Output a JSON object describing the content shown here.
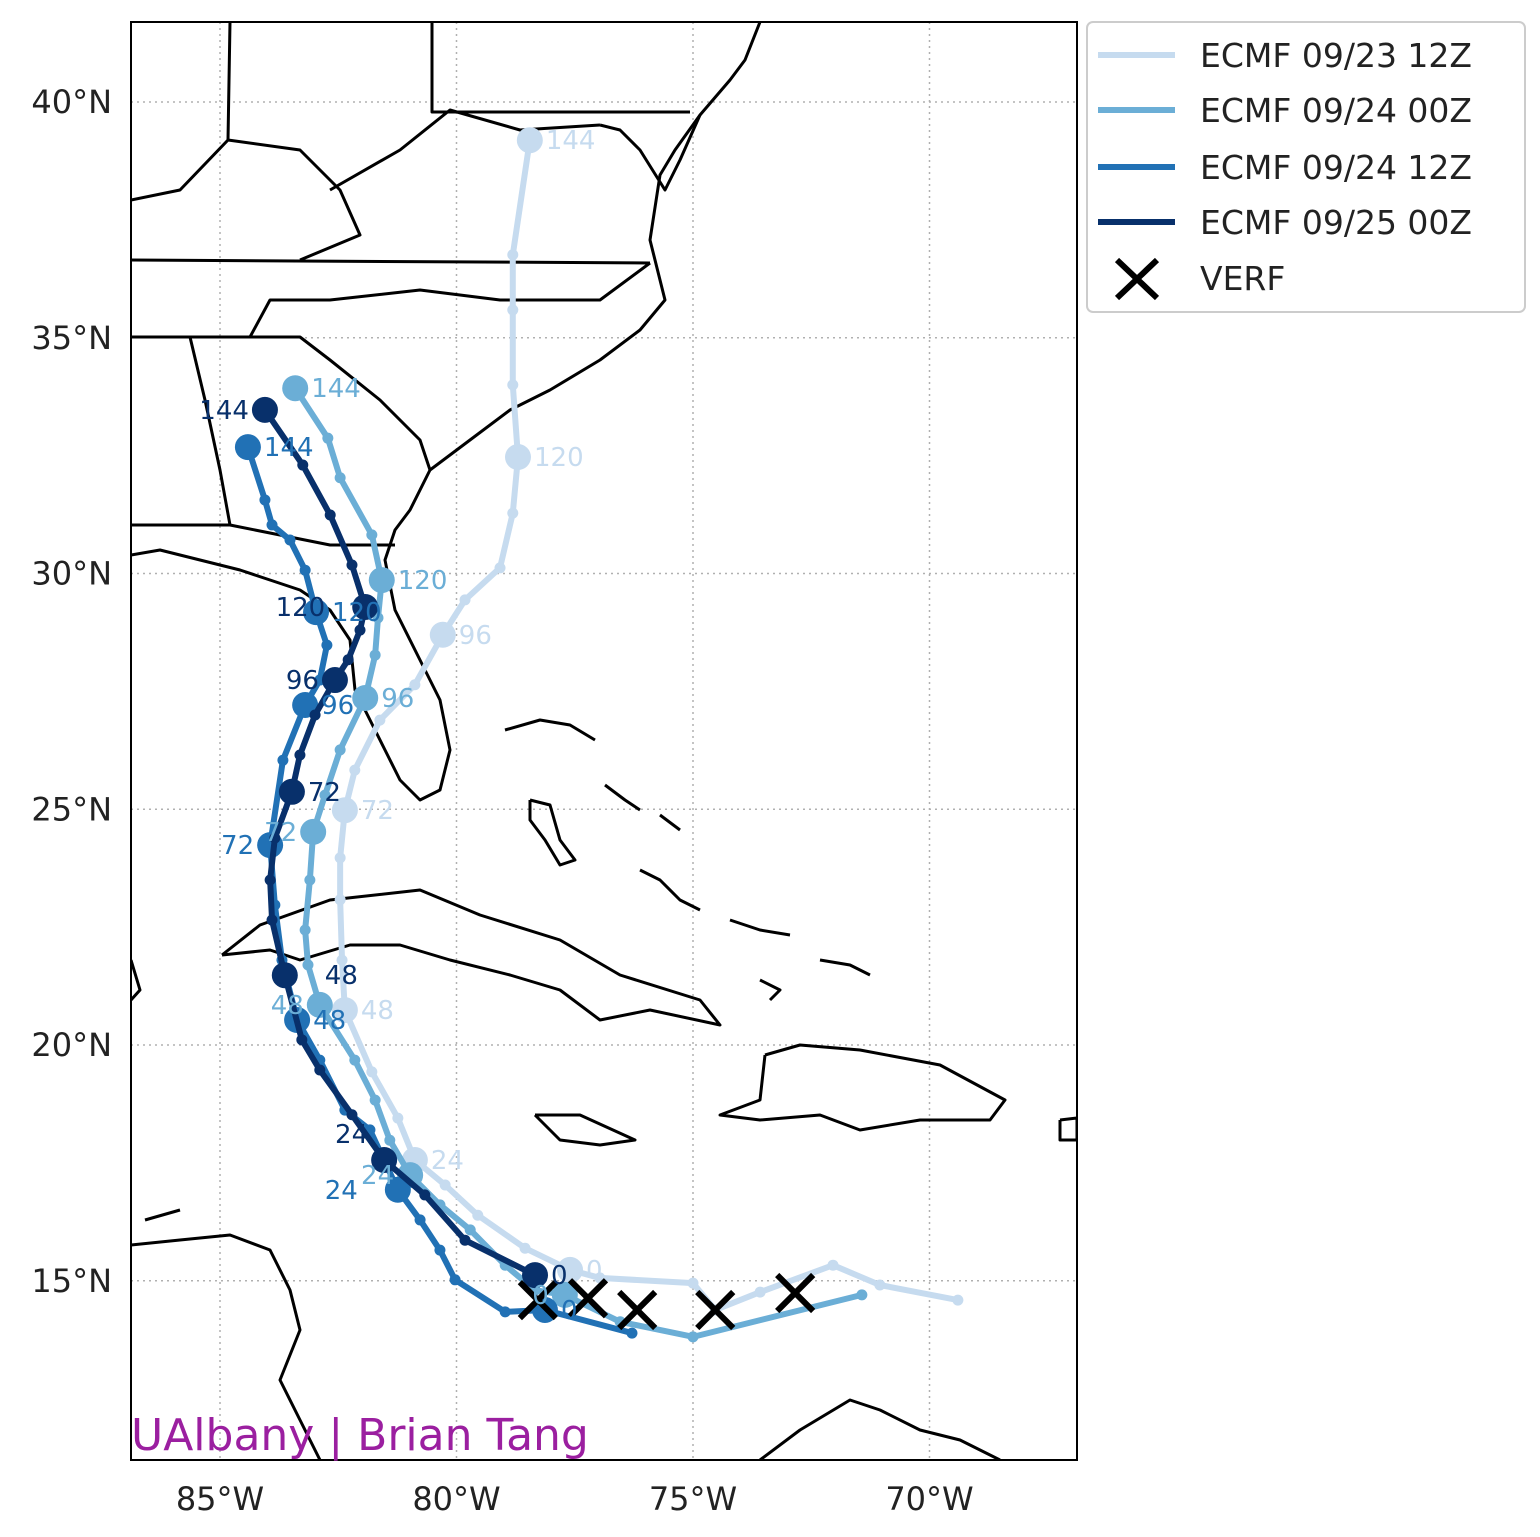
{
  "chart_data": {
    "type": "map-tracks",
    "xlim": [
      -86.88,
      -66.9
    ],
    "ylim": [
      11.2,
      41.7
    ],
    "grid": true,
    "legend_placement": "outside-top-right",
    "x_ticks": [
      {
        "value": -85,
        "label": "85°W"
      },
      {
        "value": -80,
        "label": "80°W"
      },
      {
        "value": -75,
        "label": "75°W"
      },
      {
        "value": -70,
        "label": "70°W"
      }
    ],
    "y_ticks": [
      {
        "value": 40,
        "label": "40°N"
      },
      {
        "value": 35,
        "label": "35°N"
      },
      {
        "value": 30,
        "label": "30°N"
      },
      {
        "value": 25,
        "label": "25°N"
      },
      {
        "value": 20,
        "label": "20°N"
      },
      {
        "value": 15,
        "label": "15°N"
      }
    ],
    "series": [
      {
        "name": "ECMF 09/23 12Z",
        "color": "#c6dbef",
        "points": [
          [
            -69.4,
            14.59,
            null
          ],
          [
            -71.05,
            14.91,
            null
          ],
          [
            -72.04,
            15.33,
            null
          ],
          [
            -73.58,
            14.76,
            null
          ],
          [
            -74.53,
            14.38,
            null
          ],
          [
            -75.0,
            14.95,
            null
          ],
          [
            -76.97,
            15.06,
            null
          ],
          [
            -77.6,
            15.23,
            "0"
          ],
          [
            -78.55,
            15.69,
            null
          ],
          [
            -79.55,
            16.39,
            null
          ],
          [
            -80.24,
            17.03,
            null
          ],
          [
            -80.88,
            17.56,
            "24"
          ],
          [
            -81.24,
            18.45,
            null
          ],
          [
            -81.79,
            19.43,
            null
          ],
          [
            -82.36,
            20.74,
            "48"
          ],
          [
            -82.42,
            21.8,
            null
          ],
          [
            -82.46,
            23.08,
            null
          ],
          [
            -82.46,
            23.97,
            null
          ],
          [
            -82.36,
            24.98,
            "72"
          ],
          [
            -82.15,
            25.83,
            null
          ],
          [
            -81.62,
            26.89,
            null
          ],
          [
            -80.88,
            27.64,
            null
          ],
          [
            -80.29,
            28.7,
            "96"
          ],
          [
            -79.82,
            29.44,
            null
          ],
          [
            -79.08,
            30.12,
            null
          ],
          [
            -78.81,
            31.28,
            null
          ],
          [
            -78.7,
            32.47,
            "120"
          ],
          [
            -78.81,
            34.0,
            null
          ],
          [
            -78.81,
            35.59,
            null
          ],
          [
            -78.81,
            36.76,
            null
          ],
          [
            -78.45,
            39.19,
            "144"
          ]
        ]
      },
      {
        "name": "ECMF 09/24 00Z",
        "color": "#6baed6",
        "points": [
          [
            -71.43,
            14.7,
            null
          ],
          [
            -75.0,
            13.81,
            null
          ],
          [
            -76.54,
            14.13,
            null
          ],
          [
            -77.71,
            14.7,
            "0"
          ],
          [
            -78.34,
            14.8,
            null
          ],
          [
            -78.97,
            15.33,
            null
          ],
          [
            -79.71,
            16.08,
            null
          ],
          [
            -80.35,
            16.61,
            null
          ],
          [
            -80.98,
            17.24,
            "24"
          ],
          [
            -81.41,
            17.98,
            null
          ],
          [
            -81.72,
            18.83,
            null
          ],
          [
            -82.15,
            19.68,
            null
          ],
          [
            -82.89,
            20.85,
            "48"
          ],
          [
            -83.14,
            21.7,
            null
          ],
          [
            -83.2,
            22.44,
            null
          ],
          [
            -83.1,
            23.5,
            null
          ],
          [
            -83.03,
            24.52,
            "72"
          ],
          [
            -82.78,
            25.3,
            null
          ],
          [
            -82.46,
            26.26,
            null
          ],
          [
            -81.93,
            27.36,
            "96"
          ],
          [
            -81.72,
            28.27,
            null
          ],
          [
            -81.66,
            29.06,
            null
          ],
          [
            -81.58,
            29.86,
            "120"
          ],
          [
            -81.79,
            30.82,
            null
          ],
          [
            -82.46,
            32.03,
            null
          ],
          [
            -82.72,
            32.87,
            null
          ],
          [
            -83.41,
            33.93,
            "144"
          ]
        ]
      },
      {
        "name": "ECMF 09/24 12Z",
        "color": "#2171b5",
        "points": [
          [
            -76.29,
            13.89,
            null
          ],
          [
            -78.13,
            14.38,
            "0"
          ],
          [
            -78.97,
            14.34,
            null
          ],
          [
            -80.03,
            15.02,
            null
          ],
          [
            -80.35,
            15.65,
            null
          ],
          [
            -80.77,
            16.29,
            null
          ],
          [
            -81.24,
            16.93,
            "24"
          ],
          [
            -81.83,
            18.2,
            null
          ],
          [
            -82.36,
            18.62,
            null
          ],
          [
            -82.89,
            19.68,
            null
          ],
          [
            -83.37,
            20.53,
            "48"
          ],
          [
            -83.69,
            21.8,
            null
          ],
          [
            -83.84,
            22.97,
            null
          ],
          [
            -83.94,
            24.24,
            "72"
          ],
          [
            -83.67,
            26.04,
            null
          ],
          [
            -83.2,
            27.21,
            "96"
          ],
          [
            -82.89,
            27.74,
            null
          ],
          [
            -82.74,
            28.48,
            null
          ],
          [
            -82.97,
            29.18,
            "120"
          ],
          [
            -83.2,
            30.07,
            null
          ],
          [
            -83.52,
            30.71,
            null
          ],
          [
            -83.9,
            31.03,
            null
          ],
          [
            -84.05,
            31.56,
            null
          ],
          [
            -84.41,
            32.68,
            "144"
          ]
        ]
      },
      {
        "name": "ECMF 09/25 00Z",
        "color": "#08306b",
        "points": [
          [
            -78.34,
            15.12,
            "0"
          ],
          [
            -79.82,
            15.86,
            null
          ],
          [
            -80.67,
            16.82,
            null
          ],
          [
            -81.53,
            17.56,
            "24"
          ],
          [
            -82.21,
            18.52,
            null
          ],
          [
            -82.89,
            19.47,
            null
          ],
          [
            -83.27,
            20.11,
            null
          ],
          [
            -83.63,
            21.48,
            "48"
          ],
          [
            -83.9,
            22.65,
            null
          ],
          [
            -83.94,
            23.5,
            null
          ],
          [
            -83.84,
            24.39,
            null
          ],
          [
            -83.48,
            25.37,
            "72"
          ],
          [
            -83.31,
            26.15,
            null
          ],
          [
            -82.99,
            27.0,
            null
          ],
          [
            -82.57,
            27.74,
            "96"
          ],
          [
            -82.29,
            28.17,
            null
          ],
          [
            -82.04,
            28.8,
            null
          ],
          [
            -81.93,
            29.29,
            "120"
          ],
          [
            -82.21,
            30.18,
            null
          ],
          [
            -82.67,
            31.24,
            null
          ],
          [
            -83.25,
            32.3,
            null
          ],
          [
            -84.05,
            33.47,
            "144"
          ]
        ]
      }
    ],
    "verification": {
      "name": "VERF",
      "color": "#000000",
      "points": [
        [
          -78.28,
          14.59
        ],
        [
          -77.22,
          14.63
        ],
        [
          -76.18,
          14.38
        ],
        [
          -74.53,
          14.38
        ],
        [
          -72.84,
          14.74
        ]
      ]
    }
  },
  "watermark": "UAlbany | Brian Tang"
}
